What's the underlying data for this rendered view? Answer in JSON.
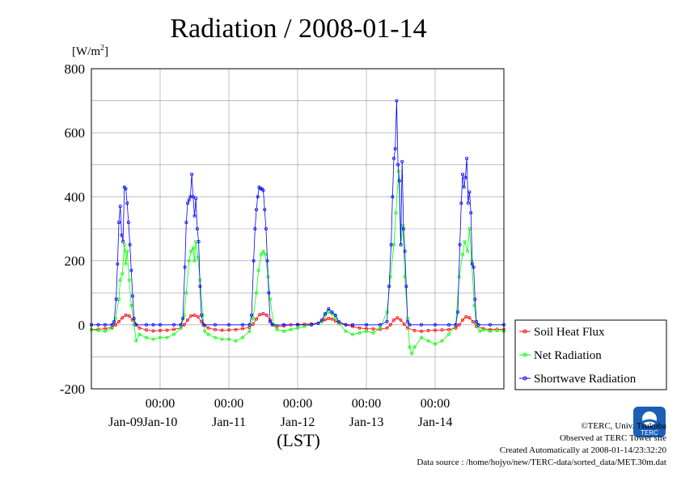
{
  "chart_data": {
    "type": "line",
    "title": "Radiation / 2008-01-14",
    "ylabel_unit": "[W/m",
    "ylabel_exp": "2",
    "ylabel_close": "]",
    "xlabel": "(LST)",
    "ylim": [
      -200,
      800
    ],
    "yticks": [
      800,
      600,
      400,
      200,
      0,
      -200
    ],
    "xlim": [
      0,
      6
    ],
    "x_unit": "days",
    "grid": true,
    "legend_position": "right",
    "date_ticks": [
      {
        "x": 1,
        "time": "00:00",
        "date": "Jan-10"
      },
      {
        "x": 2,
        "time": "00:00",
        "date": "Jan-11"
      },
      {
        "x": 3,
        "time": "00:00",
        "date": "Jan-12"
      },
      {
        "x": 4,
        "time": "00:00",
        "date": "Jan-13"
      },
      {
        "x": 5,
        "time": "00:00",
        "date": "Jan-14"
      }
    ],
    "first_day_label": "Jan-09",
    "series": [
      {
        "name": "Soil Heat Flux",
        "color": "#ff0000",
        "points": [
          [
            0.0,
            -15
          ],
          [
            0.1,
            -14
          ],
          [
            0.2,
            -12
          ],
          [
            0.3,
            -8
          ],
          [
            0.35,
            0
          ],
          [
            0.4,
            10
          ],
          [
            0.45,
            22
          ],
          [
            0.5,
            30
          ],
          [
            0.55,
            28
          ],
          [
            0.6,
            15
          ],
          [
            0.65,
            0
          ],
          [
            0.7,
            -10
          ],
          [
            0.8,
            -16
          ],
          [
            0.9,
            -19
          ],
          [
            1.0,
            -18
          ],
          [
            1.1,
            -17
          ],
          [
            1.2,
            -14
          ],
          [
            1.3,
            -10
          ],
          [
            1.35,
            0
          ],
          [
            1.4,
            15
          ],
          [
            1.45,
            28
          ],
          [
            1.5,
            30
          ],
          [
            1.55,
            25
          ],
          [
            1.6,
            10
          ],
          [
            1.65,
            -2
          ],
          [
            1.7,
            -10
          ],
          [
            1.8,
            -15
          ],
          [
            1.9,
            -17
          ],
          [
            2.0,
            -16
          ],
          [
            2.1,
            -15
          ],
          [
            2.2,
            -12
          ],
          [
            2.3,
            -8
          ],
          [
            2.35,
            2
          ],
          [
            2.4,
            18
          ],
          [
            2.45,
            32
          ],
          [
            2.5,
            35
          ],
          [
            2.55,
            30
          ],
          [
            2.6,
            15
          ],
          [
            2.65,
            0
          ],
          [
            2.7,
            -5
          ],
          [
            2.8,
            -3
          ],
          [
            2.9,
            0
          ],
          [
            3.0,
            1
          ],
          [
            3.1,
            2
          ],
          [
            3.2,
            3
          ],
          [
            3.3,
            5
          ],
          [
            3.35,
            10
          ],
          [
            3.4,
            16
          ],
          [
            3.45,
            20
          ],
          [
            3.5,
            18
          ],
          [
            3.55,
            12
          ],
          [
            3.6,
            5
          ],
          [
            3.7,
            0
          ],
          [
            3.8,
            -5
          ],
          [
            3.9,
            -10
          ],
          [
            4.0,
            -12
          ],
          [
            4.1,
            -13
          ],
          [
            4.2,
            -14
          ],
          [
            4.3,
            -10
          ],
          [
            4.35,
            0
          ],
          [
            4.4,
            15
          ],
          [
            4.45,
            22
          ],
          [
            4.5,
            15
          ],
          [
            4.55,
            2
          ],
          [
            4.6,
            -10
          ],
          [
            4.7,
            -18
          ],
          [
            4.8,
            -20
          ],
          [
            4.9,
            -18
          ],
          [
            5.0,
            -17
          ],
          [
            5.1,
            -16
          ],
          [
            5.2,
            -15
          ],
          [
            5.3,
            -10
          ],
          [
            5.35,
            0
          ],
          [
            5.4,
            15
          ],
          [
            5.45,
            25
          ],
          [
            5.5,
            22
          ],
          [
            5.55,
            10
          ],
          [
            5.6,
            -5
          ],
          [
            5.7,
            -12
          ],
          [
            5.8,
            -15
          ],
          [
            5.9,
            -14
          ],
          [
            6.0,
            -15
          ]
        ]
      },
      {
        "name": "Net Radiation",
        "color": "#00ff00",
        "points": [
          [
            0.0,
            -15
          ],
          [
            0.1,
            -18
          ],
          [
            0.2,
            -20
          ],
          [
            0.3,
            -10
          ],
          [
            0.35,
            20
          ],
          [
            0.4,
            80
          ],
          [
            0.42,
            140
          ],
          [
            0.45,
            160
          ],
          [
            0.48,
            250
          ],
          [
            0.5,
            190
          ],
          [
            0.52,
            230
          ],
          [
            0.55,
            140
          ],
          [
            0.58,
            60
          ],
          [
            0.62,
            0
          ],
          [
            0.65,
            -50
          ],
          [
            0.7,
            -30
          ],
          [
            0.8,
            -40
          ],
          [
            0.9,
            -45
          ],
          [
            1.0,
            -40
          ],
          [
            1.1,
            -40
          ],
          [
            1.2,
            -30
          ],
          [
            1.3,
            -10
          ],
          [
            1.35,
            30
          ],
          [
            1.38,
            100
          ],
          [
            1.42,
            200
          ],
          [
            1.45,
            230
          ],
          [
            1.48,
            240
          ],
          [
            1.5,
            200
          ],
          [
            1.52,
            260
          ],
          [
            1.55,
            210
          ],
          [
            1.58,
            140
          ],
          [
            1.62,
            30
          ],
          [
            1.65,
            -20
          ],
          [
            1.7,
            -30
          ],
          [
            1.8,
            -40
          ],
          [
            1.9,
            -45
          ],
          [
            2.0,
            -45
          ],
          [
            2.1,
            -50
          ],
          [
            2.2,
            -40
          ],
          [
            2.3,
            -20
          ],
          [
            2.35,
            20
          ],
          [
            2.4,
            100
          ],
          [
            2.43,
            170
          ],
          [
            2.47,
            220
          ],
          [
            2.5,
            230
          ],
          [
            2.53,
            220
          ],
          [
            2.57,
            150
          ],
          [
            2.6,
            80
          ],
          [
            2.65,
            0
          ],
          [
            2.7,
            -15
          ],
          [
            2.8,
            -20
          ],
          [
            2.9,
            -15
          ],
          [
            3.0,
            -10
          ],
          [
            3.1,
            -5
          ],
          [
            3.2,
            0
          ],
          [
            3.3,
            5
          ],
          [
            3.35,
            10
          ],
          [
            3.4,
            30
          ],
          [
            3.45,
            40
          ],
          [
            3.5,
            35
          ],
          [
            3.55,
            20
          ],
          [
            3.6,
            5
          ],
          [
            3.7,
            -20
          ],
          [
            3.8,
            -30
          ],
          [
            3.9,
            -25
          ],
          [
            4.0,
            -20
          ],
          [
            4.1,
            -25
          ],
          [
            4.2,
            -10
          ],
          [
            4.3,
            40
          ],
          [
            4.35,
            150
          ],
          [
            4.4,
            250
          ],
          [
            4.43,
            350
          ],
          [
            4.47,
            480
          ],
          [
            4.5,
            250
          ],
          [
            4.53,
            310
          ],
          [
            4.56,
            150
          ],
          [
            4.6,
            20
          ],
          [
            4.63,
            -70
          ],
          [
            4.66,
            -90
          ],
          [
            4.7,
            -70
          ],
          [
            4.8,
            -40
          ],
          [
            4.9,
            -50
          ],
          [
            5.0,
            -60
          ],
          [
            5.1,
            -50
          ],
          [
            5.2,
            -30
          ],
          [
            5.3,
            0
          ],
          [
            5.35,
            150
          ],
          [
            5.4,
            220
          ],
          [
            5.43,
            260
          ],
          [
            5.47,
            230
          ],
          [
            5.5,
            300
          ],
          [
            5.53,
            200
          ],
          [
            5.57,
            60
          ],
          [
            5.6,
            0
          ],
          [
            5.65,
            -20
          ],
          [
            5.7,
            -15
          ],
          [
            5.8,
            -20
          ],
          [
            5.9,
            -18
          ],
          [
            6.0,
            -20
          ]
        ]
      },
      {
        "name": "Shortwave Radiation",
        "color": "#0000ff",
        "points": [
          [
            0.0,
            0
          ],
          [
            0.1,
            0
          ],
          [
            0.2,
            0
          ],
          [
            0.3,
            0
          ],
          [
            0.33,
            10
          ],
          [
            0.36,
            80
          ],
          [
            0.38,
            190
          ],
          [
            0.4,
            320
          ],
          [
            0.42,
            370
          ],
          [
            0.44,
            280
          ],
          [
            0.46,
            260
          ],
          [
            0.48,
            430
          ],
          [
            0.5,
            425
          ],
          [
            0.52,
            380
          ],
          [
            0.54,
            320
          ],
          [
            0.56,
            250
          ],
          [
            0.58,
            170
          ],
          [
            0.6,
            90
          ],
          [
            0.62,
            20
          ],
          [
            0.65,
            0
          ],
          [
            0.8,
            0
          ],
          [
            0.9,
            0
          ],
          [
            1.0,
            0
          ],
          [
            1.2,
            0
          ],
          [
            1.3,
            0
          ],
          [
            1.33,
            20
          ],
          [
            1.36,
            180
          ],
          [
            1.38,
            320
          ],
          [
            1.4,
            380
          ],
          [
            1.42,
            390
          ],
          [
            1.44,
            400
          ],
          [
            1.46,
            470
          ],
          [
            1.48,
            400
          ],
          [
            1.5,
            340
          ],
          [
            1.52,
            395
          ],
          [
            1.54,
            300
          ],
          [
            1.56,
            260
          ],
          [
            1.58,
            120
          ],
          [
            1.6,
            30
          ],
          [
            1.63,
            0
          ],
          [
            1.8,
            0
          ],
          [
            2.0,
            0
          ],
          [
            2.2,
            0
          ],
          [
            2.3,
            0
          ],
          [
            2.33,
            30
          ],
          [
            2.36,
            200
          ],
          [
            2.38,
            300
          ],
          [
            2.4,
            360
          ],
          [
            2.42,
            400
          ],
          [
            2.44,
            430
          ],
          [
            2.46,
            425
          ],
          [
            2.48,
            425
          ],
          [
            2.5,
            420
          ],
          [
            2.52,
            360
          ],
          [
            2.54,
            300
          ],
          [
            2.56,
            200
          ],
          [
            2.58,
            100
          ],
          [
            2.6,
            10
          ],
          [
            2.63,
            0
          ],
          [
            2.8,
            0
          ],
          [
            3.0,
            0
          ],
          [
            3.2,
            0
          ],
          [
            3.3,
            5
          ],
          [
            3.35,
            15
          ],
          [
            3.4,
            35
          ],
          [
            3.45,
            50
          ],
          [
            3.5,
            40
          ],
          [
            3.55,
            30
          ],
          [
            3.6,
            10
          ],
          [
            3.7,
            0
          ],
          [
            3.8,
            0
          ],
          [
            4.0,
            0
          ],
          [
            4.2,
            0
          ],
          [
            4.3,
            10
          ],
          [
            4.33,
            120
          ],
          [
            4.36,
            250
          ],
          [
            4.38,
            400
          ],
          [
            4.4,
            520
          ],
          [
            4.42,
            550
          ],
          [
            4.44,
            700
          ],
          [
            4.46,
            500
          ],
          [
            4.48,
            450
          ],
          [
            4.5,
            250
          ],
          [
            4.52,
            510
          ],
          [
            4.54,
            300
          ],
          [
            4.56,
            230
          ],
          [
            4.58,
            120
          ],
          [
            4.6,
            10
          ],
          [
            4.63,
            0
          ],
          [
            4.8,
            0
          ],
          [
            5.0,
            0
          ],
          [
            5.2,
            0
          ],
          [
            5.3,
            0
          ],
          [
            5.33,
            40
          ],
          [
            5.36,
            250
          ],
          [
            5.38,
            380
          ],
          [
            5.4,
            470
          ],
          [
            5.42,
            430
          ],
          [
            5.44,
            460
          ],
          [
            5.46,
            520
          ],
          [
            5.48,
            380
          ],
          [
            5.5,
            415
          ],
          [
            5.52,
            350
          ],
          [
            5.54,
            190
          ],
          [
            5.56,
            180
          ],
          [
            5.58,
            80
          ],
          [
            5.6,
            10
          ],
          [
            5.63,
            0
          ],
          [
            5.8,
            0
          ],
          [
            6.0,
            0
          ]
        ]
      }
    ]
  },
  "footer": {
    "copyright": "©TERC, Univ. Tsukuba",
    "observed": "Observed at TERC Tower site",
    "created": "Created Automatically at 2008-01-14/23:32:20",
    "source": "Data source : /home/hojyo/new/TERC-data/sorted_data/MET.30m.dat"
  },
  "logo": {
    "text": "TERC",
    "color": "#1a5fb4"
  }
}
